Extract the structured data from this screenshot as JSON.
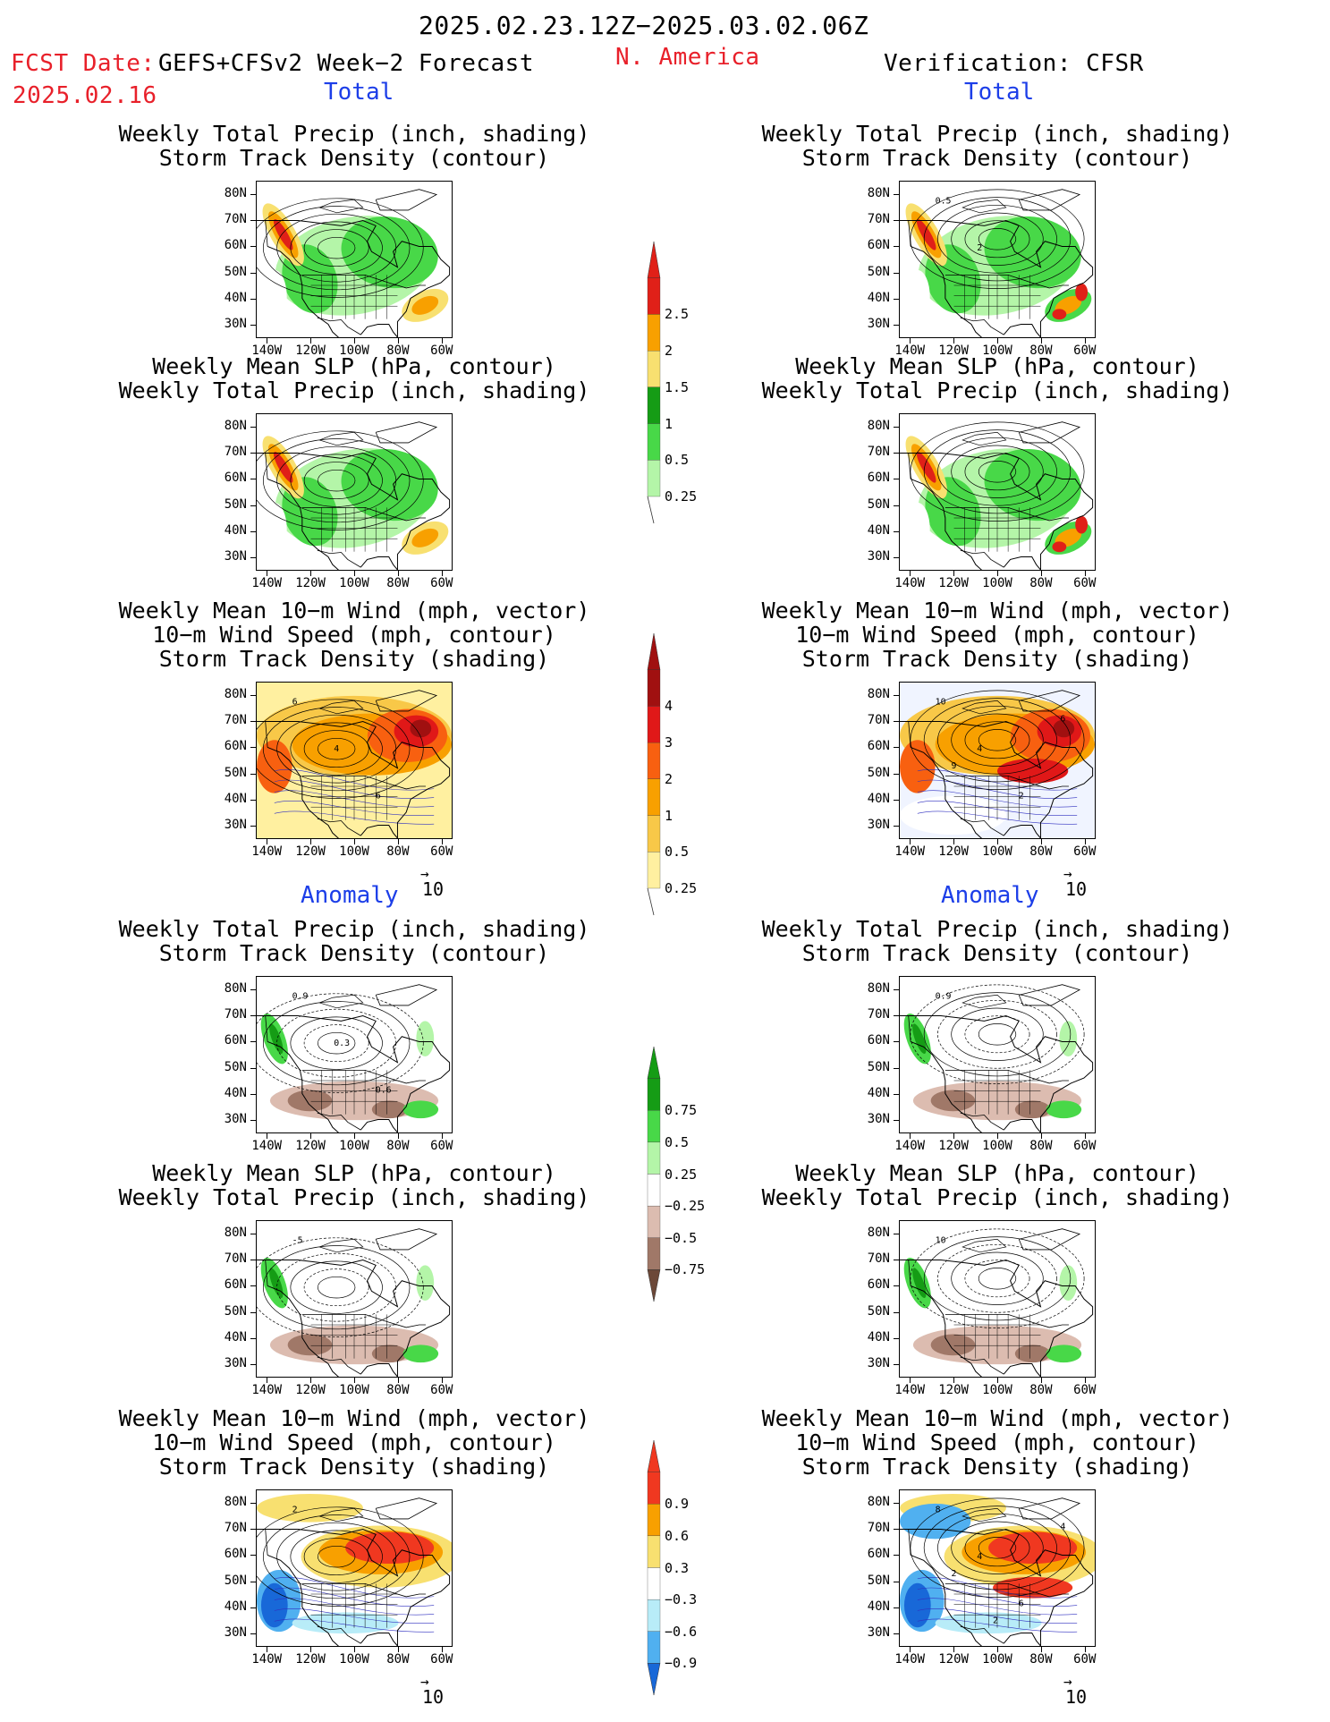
{
  "header": {
    "period": "2025.02.23.12Z−2025.03.02.06Z",
    "fcst_label": "FCST Date:",
    "fcst_model": "GEFS+CFSv2 Week−2 Forecast",
    "fcst_date": "2025.02.16",
    "region": "N. America",
    "verification": "Verification: CFSR"
  },
  "sections": {
    "total": "Total",
    "anomaly": "Anomaly"
  },
  "titles": {
    "precip_storm": [
      "Weekly Total Precip (inch, shading)",
      "Storm Track Density (contour)"
    ],
    "slp_precip": [
      "Weekly Mean SLP (hPa, contour)",
      "Weekly Total Precip (inch, shading)"
    ],
    "wind_storm": [
      "Weekly Mean 10−m Wind (mph, vector)",
      "10−m Wind Speed (mph, contour)",
      "Storm Track Density (shading)"
    ]
  },
  "axes": {
    "lat_labels": [
      "80N",
      "70N",
      "60N",
      "50N",
      "40N",
      "30N"
    ],
    "lon_labels": [
      "140W",
      "120W",
      "100W",
      "80W",
      "60W"
    ]
  },
  "vector_ref": "10",
  "colorbars": [
    {
      "name": "total-precip",
      "labels": [
        "2.5",
        "2",
        "1.5",
        "1",
        "0.5",
        "0.25"
      ],
      "colors": [
        "#e02018",
        "#f8a000",
        "#f8e070",
        "#159c15",
        "#48d848",
        "#b4f5a8"
      ]
    },
    {
      "name": "total-storm-density",
      "labels": [
        "4",
        "3",
        "2",
        "1",
        "0.5",
        "0.25"
      ],
      "colors": [
        "#a01010",
        "#e01818",
        "#f86010",
        "#f8a000",
        "#f8c848",
        "#fff0a0"
      ]
    },
    {
      "name": "anomaly-precip",
      "labels": [
        "0.75",
        "0.5",
        "0.25",
        "−0.25",
        "−0.5",
        "−0.75"
      ],
      "colors": [
        "#159c15",
        "#48d848",
        "#b4f5a8",
        "#ffffff",
        "#dcbcb0",
        "#a07868",
        "#6c4838"
      ]
    },
    {
      "name": "anomaly-storm-density",
      "labels": [
        "0.9",
        "0.6",
        "0.3",
        "−0.3",
        "−0.6",
        "−0.9"
      ],
      "colors": [
        "#f03820",
        "#f8a000",
        "#f8e070",
        "#ffffff",
        "#b8ecf8",
        "#50b0f0",
        "#1868d8"
      ]
    }
  ],
  "map_labels": {
    "t_fc_precip": [],
    "t_ver_precip": [
      "0.5",
      "2"
    ],
    "t_fc_slp": [],
    "t_ver_slp": [],
    "t_fc_wind": [
      "6",
      "4",
      "6"
    ],
    "t_ver_wind": [
      "10",
      "4",
      "2",
      "6",
      "9"
    ],
    "a_fc_precip": [
      "0.9",
      "0.3",
      "0.6"
    ],
    "a_ver_precip": [
      "0.9"
    ],
    "a_fc_slp": [
      "-5"
    ],
    "a_ver_slp": [
      "10"
    ],
    "a_fc_wind": [
      "2"
    ],
    "a_ver_wind": [
      "8",
      "4",
      "6",
      "4",
      "2",
      "2"
    ]
  }
}
